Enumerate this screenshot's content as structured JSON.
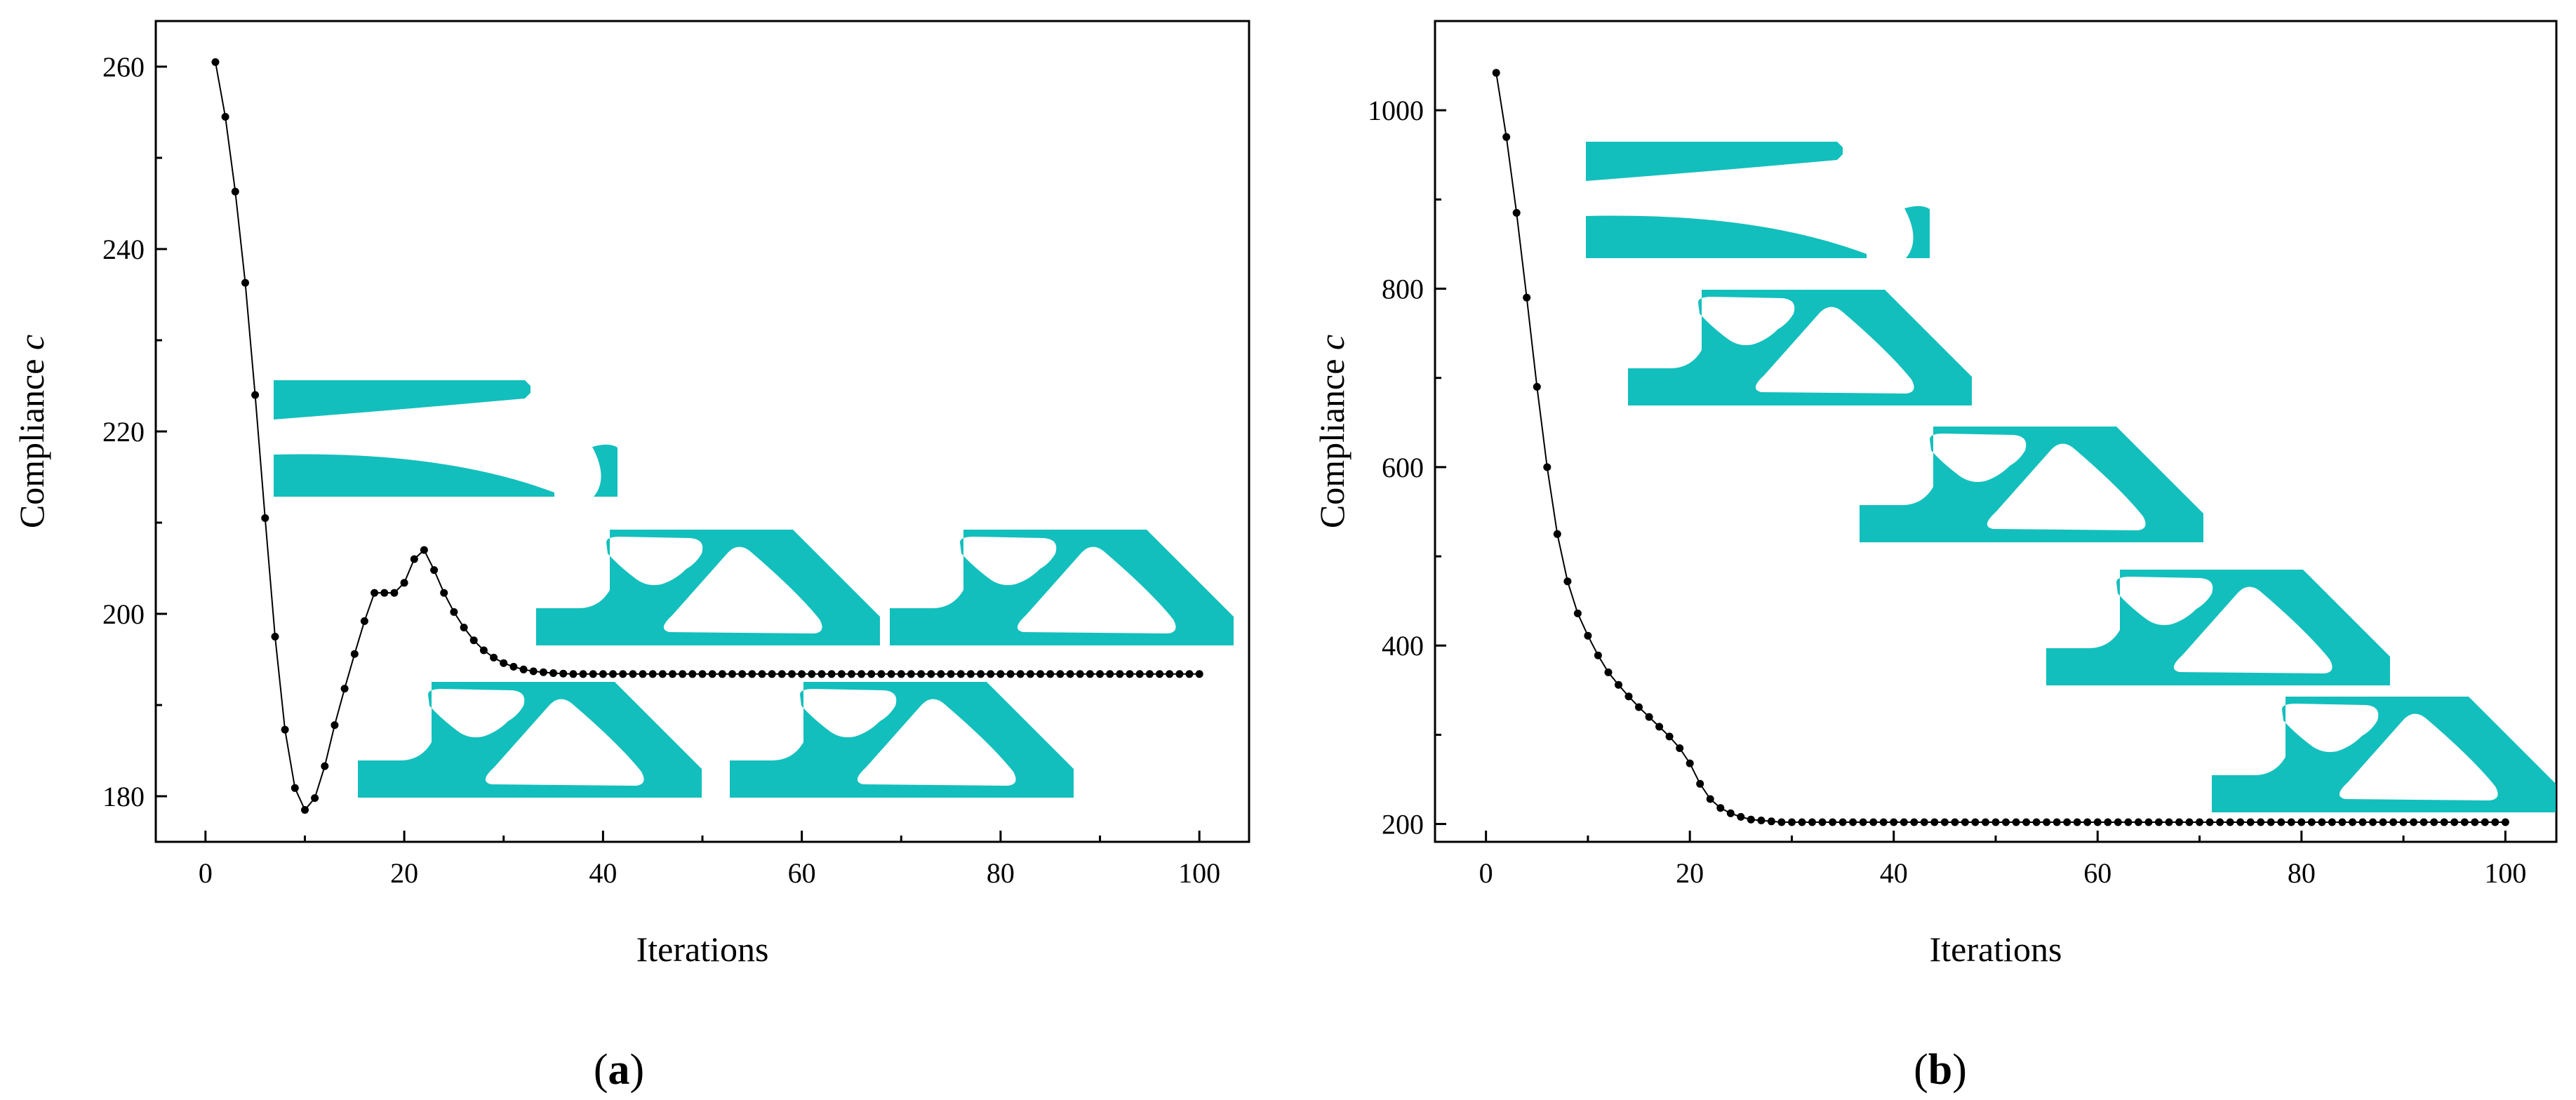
{
  "colors": {
    "structure": "#12bfbd",
    "ink": "#000000",
    "background": "#ffffff"
  },
  "chart_data": [
    {
      "type": "line",
      "panel_label": {
        "open": "(",
        "letter": "a",
        "close": ")"
      },
      "xlabel": "Iterations",
      "ylabel": {
        "text": "Compliance ",
        "symbol": "c"
      },
      "xlim": [
        -5,
        105
      ],
      "ylim": [
        175,
        265
      ],
      "xticks": [
        0,
        20,
        40,
        60,
        80,
        100
      ],
      "yticks": [
        180,
        200,
        220,
        240,
        260
      ],
      "grid": false,
      "marker": "dot",
      "x": [
        1,
        2,
        3,
        4,
        5,
        6,
        7,
        8,
        9,
        10,
        11,
        12,
        13,
        14,
        15,
        16,
        17,
        18,
        19,
        20,
        21,
        22,
        23,
        24,
        25,
        26,
        27,
        28,
        29,
        30,
        31,
        32,
        33,
        34,
        35,
        36,
        37,
        38,
        39,
        40,
        41,
        42,
        43,
        44,
        45,
        46,
        47,
        48,
        49,
        50,
        51,
        52,
        53,
        54,
        55,
        56,
        57,
        58,
        59,
        60,
        61,
        62,
        63,
        64,
        65,
        66,
        67,
        68,
        69,
        70,
        71,
        72,
        73,
        74,
        75,
        76,
        77,
        78,
        79,
        80,
        81,
        82,
        83,
        84,
        85,
        86,
        87,
        88,
        89,
        90,
        91,
        92,
        93,
        94,
        95,
        96,
        97,
        98,
        99,
        100
      ],
      "y": [
        260.5,
        254.5,
        246.3,
        236.3,
        224,
        210.5,
        197.5,
        187.3,
        180.9,
        178.5,
        179.8,
        183.3,
        187.8,
        191.8,
        195.6,
        199.2,
        202.3,
        202.3,
        202.3,
        203.4,
        206,
        207,
        204.8,
        202.3,
        200.2,
        198.5,
        197.1,
        196,
        195.2,
        194.6,
        194.2,
        193.9,
        193.7,
        193.6,
        193.5,
        193.45,
        193.4,
        193.4,
        193.4,
        193.4,
        193.4,
        193.4,
        193.4,
        193.4,
        193.4,
        193.4,
        193.4,
        193.4,
        193.4,
        193.4,
        193.4,
        193.4,
        193.4,
        193.4,
        193.4,
        193.4,
        193.4,
        193.4,
        193.4,
        193.4,
        193.4,
        193.4,
        193.4,
        193.4,
        193.4,
        193.4,
        193.4,
        193.4,
        193.4,
        193.4,
        193.4,
        193.4,
        193.4,
        193.4,
        193.4,
        193.4,
        193.4,
        193.4,
        193.4,
        193.4,
        193.4,
        193.4,
        193.4,
        193.4,
        193.4,
        193.4,
        193.4,
        193.4,
        193.4,
        193.4,
        193.4,
        193.4,
        193.4,
        193.4,
        193.4,
        193.4,
        193.4,
        193.4,
        193.4,
        193.4
      ]
    },
    {
      "type": "line",
      "panel_label": {
        "open": "(",
        "letter": "b",
        "close": ")"
      },
      "xlabel": "Iterations",
      "ylabel": {
        "text": "Compliance ",
        "symbol": "c"
      },
      "xlim": [
        -5,
        105
      ],
      "ylim": [
        180,
        1100
      ],
      "xticks": [
        0,
        20,
        40,
        60,
        80,
        100
      ],
      "yticks": [
        200,
        400,
        600,
        800,
        1000
      ],
      "grid": false,
      "marker": "dot",
      "x": [
        1,
        2,
        3,
        4,
        5,
        6,
        7,
        8,
        9,
        10,
        11,
        12,
        13,
        14,
        15,
        16,
        17,
        18,
        19,
        20,
        21,
        22,
        23,
        24,
        25,
        26,
        27,
        28,
        29,
        30,
        31,
        32,
        33,
        34,
        35,
        36,
        37,
        38,
        39,
        40,
        41,
        42,
        43,
        44,
        45,
        46,
        47,
        48,
        49,
        50,
        51,
        52,
        53,
        54,
        55,
        56,
        57,
        58,
        59,
        60,
        61,
        62,
        63,
        64,
        65,
        66,
        67,
        68,
        69,
        70,
        71,
        72,
        73,
        74,
        75,
        76,
        77,
        78,
        79,
        80,
        81,
        82,
        83,
        84,
        85,
        86,
        87,
        88,
        89,
        90,
        91,
        92,
        93,
        94,
        95,
        96,
        97,
        98,
        99,
        100
      ],
      "y": [
        1042,
        970,
        885,
        790,
        690,
        600,
        525,
        472,
        436,
        411,
        389,
        370,
        356,
        343,
        331,
        320,
        309,
        298,
        285,
        268,
        245,
        228,
        218,
        212,
        208,
        205,
        204,
        203,
        202,
        202,
        202,
        202,
        202,
        202,
        202,
        202,
        202,
        202,
        202,
        202,
        202,
        202,
        202,
        202,
        202,
        202,
        202,
        202,
        202,
        202,
        202,
        202,
        202,
        202,
        202,
        202,
        202,
        202,
        202,
        202,
        202,
        202,
        202,
        202,
        202,
        202,
        202,
        202,
        202,
        202,
        202,
        202,
        202,
        202,
        202,
        202,
        202,
        202,
        202,
        202,
        202,
        202,
        202,
        202,
        202,
        202,
        202,
        202,
        202,
        202,
        202,
        202,
        202,
        202,
        202,
        202,
        202,
        202,
        202,
        202
      ]
    }
  ]
}
